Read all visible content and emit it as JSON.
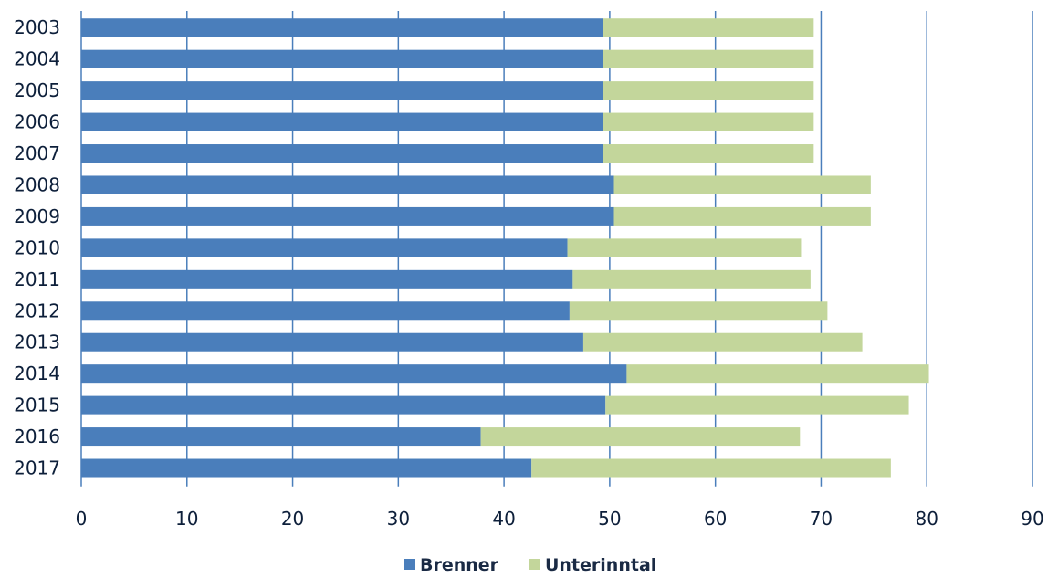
{
  "chart_data": {
    "type": "bar",
    "orientation": "horizontal",
    "stacked": true,
    "categories": [
      "2003",
      "2004",
      "2005",
      "2006",
      "2007",
      "2008",
      "2009",
      "2010",
      "2011",
      "2012",
      "2013",
      "2014",
      "2015",
      "2016",
      "2017"
    ],
    "series": [
      {
        "name": "Brenner",
        "color": "#4a7ebb",
        "values": [
          49.4,
          49.4,
          49.4,
          49.4,
          49.4,
          50.4,
          50.4,
          46.0,
          46.5,
          46.2,
          47.5,
          51.6,
          49.6,
          37.8,
          42.6
        ]
      },
      {
        "name": "Unterinntal",
        "color": "#c3d69b",
        "values": [
          19.9,
          19.9,
          19.9,
          19.9,
          19.9,
          24.3,
          24.3,
          22.1,
          22.5,
          24.4,
          26.4,
          28.6,
          28.7,
          30.2,
          34.0
        ]
      }
    ],
    "xlim": [
      0,
      90
    ],
    "xticks": [
      "0",
      "10",
      "20",
      "30",
      "40",
      "50",
      "60",
      "70",
      "80",
      "90"
    ],
    "grid": true,
    "legend_position": "bottom"
  }
}
